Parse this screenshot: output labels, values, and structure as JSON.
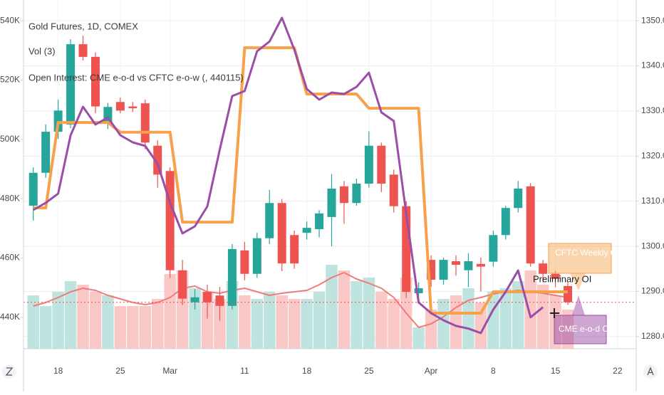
{
  "chart_data": {
    "type": "candlestick",
    "title": "Gold Futures, 1D, COMEX",
    "indicators": [
      "Vol (3)",
      "Open Interest: CME e-o-d vs CFTC e-o-w (, 440115)"
    ],
    "annotation": "Preliminary OI",
    "categories": [
      null,
      null,
      "18",
      null,
      null,
      null,
      null,
      "25",
      null,
      null,
      null,
      "Mar",
      null,
      null,
      null,
      null,
      null,
      "11",
      null,
      null,
      null,
      null,
      "18",
      null,
      null,
      null,
      null,
      "25",
      null,
      null,
      null,
      null,
      "Apr",
      null,
      null,
      null,
      null,
      "8",
      null,
      null,
      null,
      null,
      "15",
      null,
      null,
      null,
      null,
      "22",
      null
    ],
    "axis": "y2",
    "up_color": "#26a69a",
    "down_color": "#ef5350",
    "open": [
      1309,
      1316.3,
      1325.4,
      1327,
      1344.8,
      1342,
      1327.5,
      1332,
      1331,
      1331.7,
      1322.3,
      1316.7,
      1294.7,
      1287.6,
      1289.9,
      1289.1,
      1286.8,
      1299.1,
      1293.9,
      1301.8,
      1309.6,
      1302.5,
      1303,
      1303.8,
      1306.5,
      1313.3,
      1309.6,
      1313.9,
      1322.3,
      1315.9,
      1308.9,
      1289.6,
      1297,
      1292.6,
      1296.7,
      1294.7,
      1296.1,
      1296.6,
      1302.5,
      1308.5,
      1313.3,
      1296.2,
      1293.9,
      1291.2,
      null,
      null,
      null,
      null,
      null
    ],
    "high": [
      1317.5,
      1327,
      1332.5,
      1345.9,
      1346.7,
      1343,
      1331.8,
      1333,
      1332,
      1332.5,
      1323.5,
      1317.5,
      1297,
      1290.5,
      1291.5,
      1291,
      1300.5,
      1301,
      1303,
      1312.5,
      1310.5,
      1303.5,
      1305.5,
      1308,
      1316,
      1314.5,
      1315,
      1325.5,
      1323,
      1317,
      1310,
      1292,
      1298,
      1297.5,
      1298,
      1298.5,
      1297.5,
      1303.5,
      1309,
      1314.5,
      1314,
      1297,
      1294.5,
      1292,
      null,
      null,
      null,
      null,
      null
    ],
    "low": [
      1305.7,
      1315.2,
      1323.8,
      1326.2,
      1341.2,
      1329.5,
      1326,
      1329.5,
      1329.8,
      1321.5,
      1313,
      1293,
      1287,
      1286,
      1284,
      1283.5,
      1286,
      1292.5,
      1293,
      1300.5,
      1294.5,
      1295,
      1301.5,
      1302,
      1300,
      1305,
      1309,
      1313,
      1312,
      1307.5,
      1288.5,
      1288,
      1291,
      1291.5,
      1293.5,
      1291,
      1290,
      1295.5,
      1301.5,
      1307.5,
      1295.5,
      1292,
      1291,
      1287,
      null,
      null,
      null,
      null,
      null
    ],
    "close": [
      1316.3,
      1325.4,
      1330.1,
      1344.8,
      1342,
      1331,
      1330.9,
      1330.1,
      1330.6,
      1323,
      1315.9,
      1294.7,
      1288.4,
      1288.7,
      1287.6,
      1286.8,
      1299.4,
      1293.9,
      1301.8,
      1309.6,
      1296.2,
      1296.2,
      1304.1,
      1307.3,
      1312.8,
      1309.6,
      1313.9,
      1322.3,
      1313.9,
      1308.9,
      1289.9,
      1290.7,
      1292.6,
      1297,
      1295.9,
      1296.7,
      1295.5,
      1302.5,
      1308.5,
      1312.8,
      1296.2,
      1293.9,
      1292.8,
      1287.6,
      null,
      null,
      null,
      null,
      null
    ],
    "volume": {
      "values": [
        187500,
        150000,
        200000,
        237500,
        225000,
        200000,
        187500,
        150000,
        150000,
        150000,
        175000,
        262500,
        275000,
        212500,
        200000,
        175000,
        237500,
        187500,
        175000,
        200000,
        187500,
        175000,
        175000,
        200000,
        295000,
        275000,
        237500,
        250000,
        200000,
        175000,
        250000,
        75000,
        137500,
        175000,
        187500,
        212500,
        162500,
        200000,
        212500,
        237500,
        275000,
        225000,
        187500,
        137500,
        null,
        null,
        null,
        null,
        null
      ],
      "ma_values": [
        150000,
        162500,
        180000,
        200000,
        212500,
        205000,
        187500,
        175000,
        162500,
        155000,
        162500,
        180000,
        212500,
        220000,
        200000,
        195000,
        205000,
        212500,
        200000,
        187500,
        195000,
        200000,
        205000,
        225000,
        250000,
        267500,
        245000,
        230000,
        212500,
        180000,
        125000,
        75000,
        87500,
        112500,
        145000,
        170000,
        180000,
        192500,
        200000,
        205000,
        200000,
        195000,
        187500,
        180000,
        null,
        null,
        null,
        null,
        null
      ],
      "ma_color": "#f07a7a",
      "up_color": "#bfe3df",
      "down_color": "#f9c8c7",
      "vlim": [
        0,
        400000
      ]
    },
    "series": [
      {
        "name": "CME e-o-d OI",
        "color": "#9b4ea6",
        "values": [
          476200,
          478600,
          481700,
          501400,
          511000,
          505000,
          507400,
          501400,
          499000,
          497800,
          491800,
          478600,
          468300,
          470700,
          477400,
          496600,
          514600,
          516300,
          529700,
          533000,
          541000,
          530200,
          517000,
          513400,
          515800,
          515300,
          517700,
          522500,
          509100,
          506200,
          475000,
          445000,
          441400,
          439000,
          437100,
          436200,
          434700,
          442600,
          448600,
          455800,
          440000,
          443400,
          null,
          null,
          null,
          null,
          null,
          null,
          null
        ]
      },
      {
        "name": "CFTC Weekly OI",
        "color": "#f7a24b",
        "values": [
          476900,
          476900,
          505700,
          505700,
          505700,
          505700,
          505700,
          502400,
          502400,
          502400,
          502400,
          502400,
          472100,
          472100,
          472100,
          472100,
          472100,
          530900,
          530900,
          530900,
          530900,
          530900,
          515300,
          515300,
          515300,
          515300,
          515300,
          510500,
          510500,
          510500,
          510500,
          510500,
          441400,
          441400,
          441400,
          441400,
          441400,
          448600,
          448600,
          448600,
          448600,
          448600,
          448600,
          448600,
          null,
          null,
          null,
          null,
          null
        ]
      }
    ],
    "ylim": [
      429400,
      547000
    ],
    "yticks": [
      {
        "value": 440000,
        "label": "440K"
      },
      {
        "value": 460000,
        "label": "460K"
      },
      {
        "value": 480000,
        "label": "480K"
      },
      {
        "value": 500000,
        "label": "500K"
      },
      {
        "value": 520000,
        "label": "520K"
      },
      {
        "value": 540000,
        "label": "540K"
      }
    ],
    "y2lim": [
      1277.3,
      1354.6
    ],
    "y2ticks": [
      {
        "value": 1280,
        "label": "1280.0"
      },
      {
        "value": 1290,
        "label": "1290.0"
      },
      {
        "value": 1300,
        "label": "1300.0"
      },
      {
        "value": 1310,
        "label": "1310.0"
      },
      {
        "value": 1320,
        "label": "1320.0"
      },
      {
        "value": 1330,
        "label": "1330.0"
      },
      {
        "value": 1340,
        "label": "1340.0"
      },
      {
        "value": 1350,
        "label": "1350.0"
      }
    ],
    "grid": true
  }
}
